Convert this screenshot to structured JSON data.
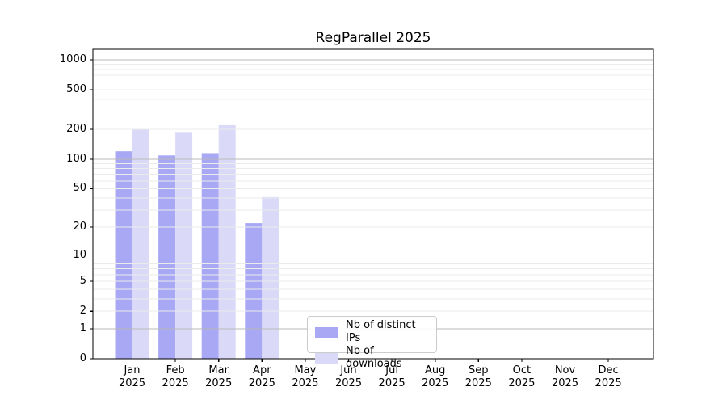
{
  "chart_data": {
    "type": "bar",
    "title": "RegParallel 2025",
    "categories": [
      "Jan",
      "Feb",
      "Mar",
      "Apr",
      "May",
      "Jun",
      "Jul",
      "Aug",
      "Sep",
      "Oct",
      "Nov",
      "Dec"
    ],
    "x_year": "2025",
    "series": [
      {
        "name": "Nb of distinct IPs",
        "color": "#a8a8f4",
        "values": [
          120,
          109,
          115,
          22,
          0,
          0,
          0,
          0,
          0,
          0,
          0,
          0
        ]
      },
      {
        "name": "Nb of downloads",
        "color": "#dadaf8",
        "values": [
          200,
          188,
          220,
          41,
          0,
          0,
          0,
          0,
          0,
          0,
          0,
          0
        ]
      }
    ],
    "y_ticks": [
      0,
      1,
      2,
      5,
      10,
      20,
      50,
      100,
      200,
      500,
      1000
    ],
    "y_scale": "log1p",
    "ylim": [
      0,
      1275
    ],
    "grid": "on",
    "legend_position": "bottom-center",
    "colors": {
      "bar_dark": "#a8a8f4",
      "bar_light": "#dadaf8",
      "grid_major": "#b9b9b9",
      "grid_minor": "#ebebeb",
      "spine": "#000000"
    }
  }
}
